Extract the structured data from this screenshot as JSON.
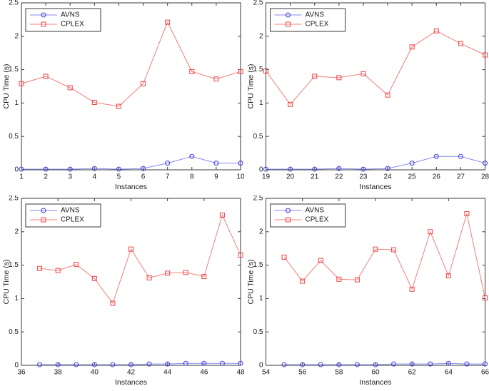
{
  "figure": {
    "background": "#ffffff",
    "description": "2x2 grid of MATLAB-style line plots comparing AVNS and CPLEX CPU time per instance"
  },
  "styles": {
    "axis_color": "#3a3a3a",
    "text_color": "#1a1a1a",
    "legend_bg": "#ffffff",
    "legend_border": "#3a3a3a",
    "series_colors": {
      "AVNS": {
        "line": "#8a8af0",
        "marker": "#3c3cdc"
      },
      "CPLEX": {
        "line": "#f87c7c",
        "marker": "#ee4444"
      }
    }
  },
  "chart_data": [
    {
      "type": "line",
      "position": "top-left",
      "title": "",
      "xlabel": "Instances",
      "ylabel": "CPU Time (s)",
      "xlim": [
        1,
        10
      ],
      "ylim": [
        0,
        2.5
      ],
      "xticks": [
        1,
        2,
        3,
        4,
        5,
        6,
        7,
        8,
        9,
        10
      ],
      "yticks": [
        0,
        0.5,
        1,
        1.5,
        2,
        2.5
      ],
      "x": [
        1,
        2,
        3,
        4,
        5,
        6,
        7,
        8,
        9,
        10
      ],
      "series": [
        {
          "name": "AVNS",
          "marker": "circle",
          "values": [
            0.01,
            0.01,
            0.01,
            0.02,
            0.01,
            0.02,
            0.1,
            0.2,
            0.1,
            0.1
          ]
        },
        {
          "name": "CPLEX",
          "marker": "square",
          "values": [
            1.29,
            1.4,
            1.23,
            1.01,
            0.95,
            1.29,
            2.21,
            1.47,
            1.36,
            1.47
          ]
        }
      ],
      "legend_position": "top-left",
      "grid": false
    },
    {
      "type": "line",
      "position": "top-right",
      "title": "",
      "xlabel": "Instances",
      "ylabel": "CPU Time (s)",
      "xlim": [
        19,
        28
      ],
      "ylim": [
        0,
        2.5
      ],
      "xticks": [
        19,
        20,
        21,
        22,
        23,
        24,
        25,
        26,
        27,
        28
      ],
      "yticks": [
        0,
        0.5,
        1,
        1.5,
        2,
        2.5
      ],
      "x": [
        19,
        20,
        21,
        22,
        23,
        24,
        25,
        26,
        27,
        28
      ],
      "series": [
        {
          "name": "AVNS",
          "marker": "circle",
          "values": [
            0.01,
            0.01,
            0.01,
            0.02,
            0.01,
            0.02,
            0.1,
            0.2,
            0.2,
            0.1
          ]
        },
        {
          "name": "CPLEX",
          "marker": "square",
          "values": [
            1.48,
            0.98,
            1.4,
            1.38,
            1.44,
            1.12,
            1.84,
            2.08,
            1.89,
            1.72
          ]
        }
      ],
      "legend_position": "top-left",
      "grid": false
    },
    {
      "type": "line",
      "position": "bottom-left",
      "title": "",
      "xlabel": "Instances",
      "ylabel": "CPU Time (s)",
      "xlim": [
        36,
        48
      ],
      "ylim": [
        0,
        2.5
      ],
      "xticks": [
        36,
        38,
        40,
        42,
        44,
        46,
        48
      ],
      "yticks": [
        0,
        0.5,
        1,
        1.5,
        2,
        2.5
      ],
      "x": [
        37,
        38,
        39,
        40,
        41,
        42,
        43,
        44,
        45,
        46,
        47,
        48
      ],
      "series": [
        {
          "name": "AVNS",
          "marker": "circle",
          "values": [
            0.01,
            0.01,
            0.01,
            0.01,
            0.01,
            0.01,
            0.02,
            0.02,
            0.03,
            0.03,
            0.03,
            0.03
          ]
        },
        {
          "name": "CPLEX",
          "marker": "square",
          "values": [
            1.45,
            1.42,
            1.51,
            1.3,
            0.93,
            1.74,
            1.31,
            1.38,
            1.39,
            1.33,
            2.25,
            1.65
          ]
        }
      ],
      "legend_position": "top-left",
      "grid": false
    },
    {
      "type": "line",
      "position": "bottom-right",
      "title": "",
      "xlabel": "Instances",
      "ylabel": "CPU Time (s)",
      "xlim": [
        54,
        66
      ],
      "ylim": [
        0,
        2.5
      ],
      "xticks": [
        54,
        56,
        58,
        60,
        62,
        64,
        66
      ],
      "yticks": [
        0,
        0.5,
        1,
        1.5,
        2,
        2.5
      ],
      "x": [
        55,
        56,
        57,
        58,
        59,
        60,
        61,
        62,
        63,
        64,
        65,
        66
      ],
      "series": [
        {
          "name": "AVNS",
          "marker": "circle",
          "values": [
            0.01,
            0.01,
            0.01,
            0.01,
            0.01,
            0.01,
            0.02,
            0.02,
            0.02,
            0.03,
            0.02,
            0.02
          ]
        },
        {
          "name": "CPLEX",
          "marker": "square",
          "values": [
            1.62,
            1.26,
            1.57,
            1.29,
            1.28,
            1.74,
            1.73,
            1.14,
            2.0,
            1.34,
            2.27,
            1.01
          ]
        }
      ],
      "legend_position": "top-left",
      "grid": false
    }
  ]
}
